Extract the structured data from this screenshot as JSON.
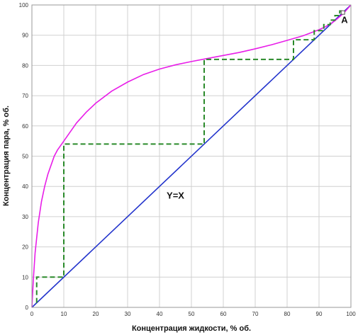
{
  "chart_data": {
    "type": "line",
    "xlabel": "Концентрация жидкости, % об.",
    "ylabel": "Концентрация пара, % об.",
    "xlim": [
      0,
      100
    ],
    "ylim": [
      0,
      100
    ],
    "xticks": [
      0,
      10,
      20,
      30,
      40,
      50,
      60,
      70,
      80,
      90,
      100
    ],
    "yticks": [
      0,
      10,
      20,
      30,
      40,
      50,
      60,
      70,
      80,
      90,
      100
    ],
    "grid": true,
    "series": [
      {
        "kind": "equilibrium-curve",
        "color": "#e81ee8",
        "x": [
          0,
          0.5,
          1,
          2,
          3,
          4,
          5,
          6,
          7,
          8,
          9,
          10,
          12,
          14,
          17,
          20,
          25,
          30,
          35,
          40,
          45,
          50,
          55,
          60,
          65,
          70,
          75,
          80,
          85,
          88,
          90,
          92,
          94,
          95,
          96,
          97,
          98,
          99,
          100
        ],
        "y": [
          0,
          10,
          18,
          28,
          35,
          40,
          44,
          47,
          50,
          52,
          53.5,
          55,
          58,
          61,
          64.5,
          67.5,
          71.5,
          74.5,
          77,
          78.8,
          80.2,
          81.3,
          82.3,
          83.3,
          84.3,
          85.5,
          86.8,
          88.3,
          89.8,
          91,
          91.8,
          92.8,
          94,
          94.8,
          95.7,
          96.6,
          97.6,
          98.8,
          100
        ]
      },
      {
        "name": "Y=X",
        "kind": "diagonal",
        "color": "#2233cc",
        "x": [
          0,
          100
        ],
        "y": [
          0,
          100
        ]
      },
      {
        "kind": "steps",
        "color": "#2a8a2a",
        "x": [
          1.5,
          1.5,
          10,
          10,
          54,
          54,
          82,
          82,
          88.5,
          88.5,
          91.5,
          91.5,
          93.5,
          93.5,
          95,
          95,
          96.5,
          96.5,
          98
        ],
        "y": [
          1.5,
          10,
          10,
          54,
          54,
          82,
          82,
          88.5,
          88.5,
          91.5,
          91.5,
          93.5,
          93.5,
          95,
          95,
          96.5,
          96.5,
          98,
          98
        ]
      }
    ],
    "annotations": [
      {
        "text": "Y=X",
        "x": 45,
        "y": 36
      },
      {
        "text": "A",
        "x": 98,
        "y": 94
      }
    ],
    "point_A": {
      "x": 97.5,
      "y": 97.5
    }
  }
}
